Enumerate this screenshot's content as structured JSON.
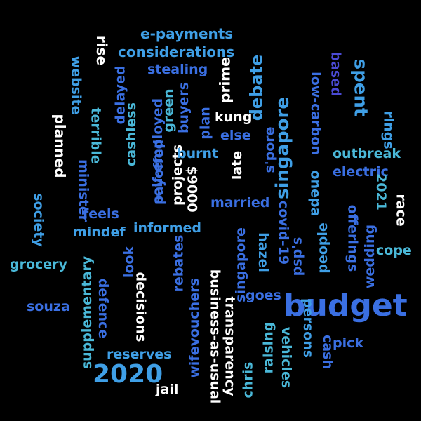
{
  "colors": {
    "background": "#000000",
    "white": "#ffffff",
    "cyan": "#4ab8d8",
    "sky": "#3f9fe6",
    "blue": "#3a6fe2",
    "indigo": "#4a4ad4",
    "teal": "#3fa8c8"
  },
  "words": [
    {
      "text": "budget",
      "color": "blue"
    },
    {
      "text": "2020",
      "color": "sky"
    },
    {
      "text": "singapore",
      "color": "sky"
    },
    {
      "text": "spent",
      "color": "sky"
    },
    {
      "text": "debate",
      "color": "sky"
    },
    {
      "text": "e-payments",
      "color": "sky"
    },
    {
      "text": "considerations",
      "color": "sky"
    },
    {
      "text": "stealing",
      "color": "blue"
    },
    {
      "text": "rise",
      "color": "white"
    },
    {
      "text": "prime",
      "color": "white"
    },
    {
      "text": "website",
      "color": "sky"
    },
    {
      "text": "delayed",
      "color": "blue"
    },
    {
      "text": "planned",
      "color": "white"
    },
    {
      "text": "terrible",
      "color": "cyan"
    },
    {
      "text": "cashless",
      "color": "cyan"
    },
    {
      "text": "self-employed",
      "color": "blue"
    },
    {
      "text": "green",
      "color": "cyan"
    },
    {
      "text": "buyers",
      "color": "blue"
    },
    {
      "text": "plan",
      "color": "blue"
    },
    {
      "text": "kung",
      "color": "white"
    },
    {
      "text": "else",
      "color": "blue"
    },
    {
      "text": "s'pore",
      "color": "blue"
    },
    {
      "text": "low-carbon",
      "color": "blue"
    },
    {
      "text": "based",
      "color": "indigo"
    },
    {
      "text": "rings",
      "color": "sky"
    },
    {
      "text": "outbreak",
      "color": "cyan"
    },
    {
      "text": "electric",
      "color": "blue"
    },
    {
      "text": "minister",
      "color": "blue"
    },
    {
      "text": "payoffed",
      "color": "blue"
    },
    {
      "text": "projects",
      "color": "white"
    },
    {
      "text": "burnt",
      "color": "sky"
    },
    {
      "text": "late",
      "color": "white"
    },
    {
      "text": "$9000",
      "color": "white"
    },
    {
      "text": "onepa",
      "color": "sky"
    },
    {
      "text": "2021",
      "color": "cyan"
    },
    {
      "text": "race",
      "color": "white"
    },
    {
      "text": "society",
      "color": "sky"
    },
    {
      "text": "feels",
      "color": "blue"
    },
    {
      "text": "mindef",
      "color": "sky"
    },
    {
      "text": "informed",
      "color": "sky"
    },
    {
      "text": "married",
      "color": "blue"
    },
    {
      "text": "covid-19",
      "color": "blue"
    },
    {
      "text": "people",
      "color": "sky"
    },
    {
      "text": "offerings",
      "color": "blue"
    },
    {
      "text": "wedding",
      "color": "blue"
    },
    {
      "text": "cope",
      "color": "cyan"
    },
    {
      "text": "grocery",
      "color": "cyan"
    },
    {
      "text": "supplementary",
      "color": "cyan"
    },
    {
      "text": "look",
      "color": "blue"
    },
    {
      "text": "rebates",
      "color": "blue"
    },
    {
      "text": "business-as-usual",
      "color": "white"
    },
    {
      "text": "singapore",
      "color": "blue"
    },
    {
      "text": "hazel",
      "color": "sky"
    },
    {
      "text": "psp's",
      "color": "blue"
    },
    {
      "text": "defence",
      "color": "blue"
    },
    {
      "text": "decisions",
      "color": "white"
    },
    {
      "text": "souza",
      "color": "blue"
    },
    {
      "text": "reserves",
      "color": "sky"
    },
    {
      "text": "wifevouchers",
      "color": "blue"
    },
    {
      "text": "transparency",
      "color": "white"
    },
    {
      "text": "goes",
      "color": "blue"
    },
    {
      "text": "raising",
      "color": "cyan"
    },
    {
      "text": "persons",
      "color": "sky"
    },
    {
      "text": "vehicles",
      "color": "cyan"
    },
    {
      "text": "cash",
      "color": "blue"
    },
    {
      "text": "pick",
      "color": "blue"
    },
    {
      "text": "chris",
      "color": "cyan"
    },
    {
      "text": "jail",
      "color": "white"
    }
  ]
}
